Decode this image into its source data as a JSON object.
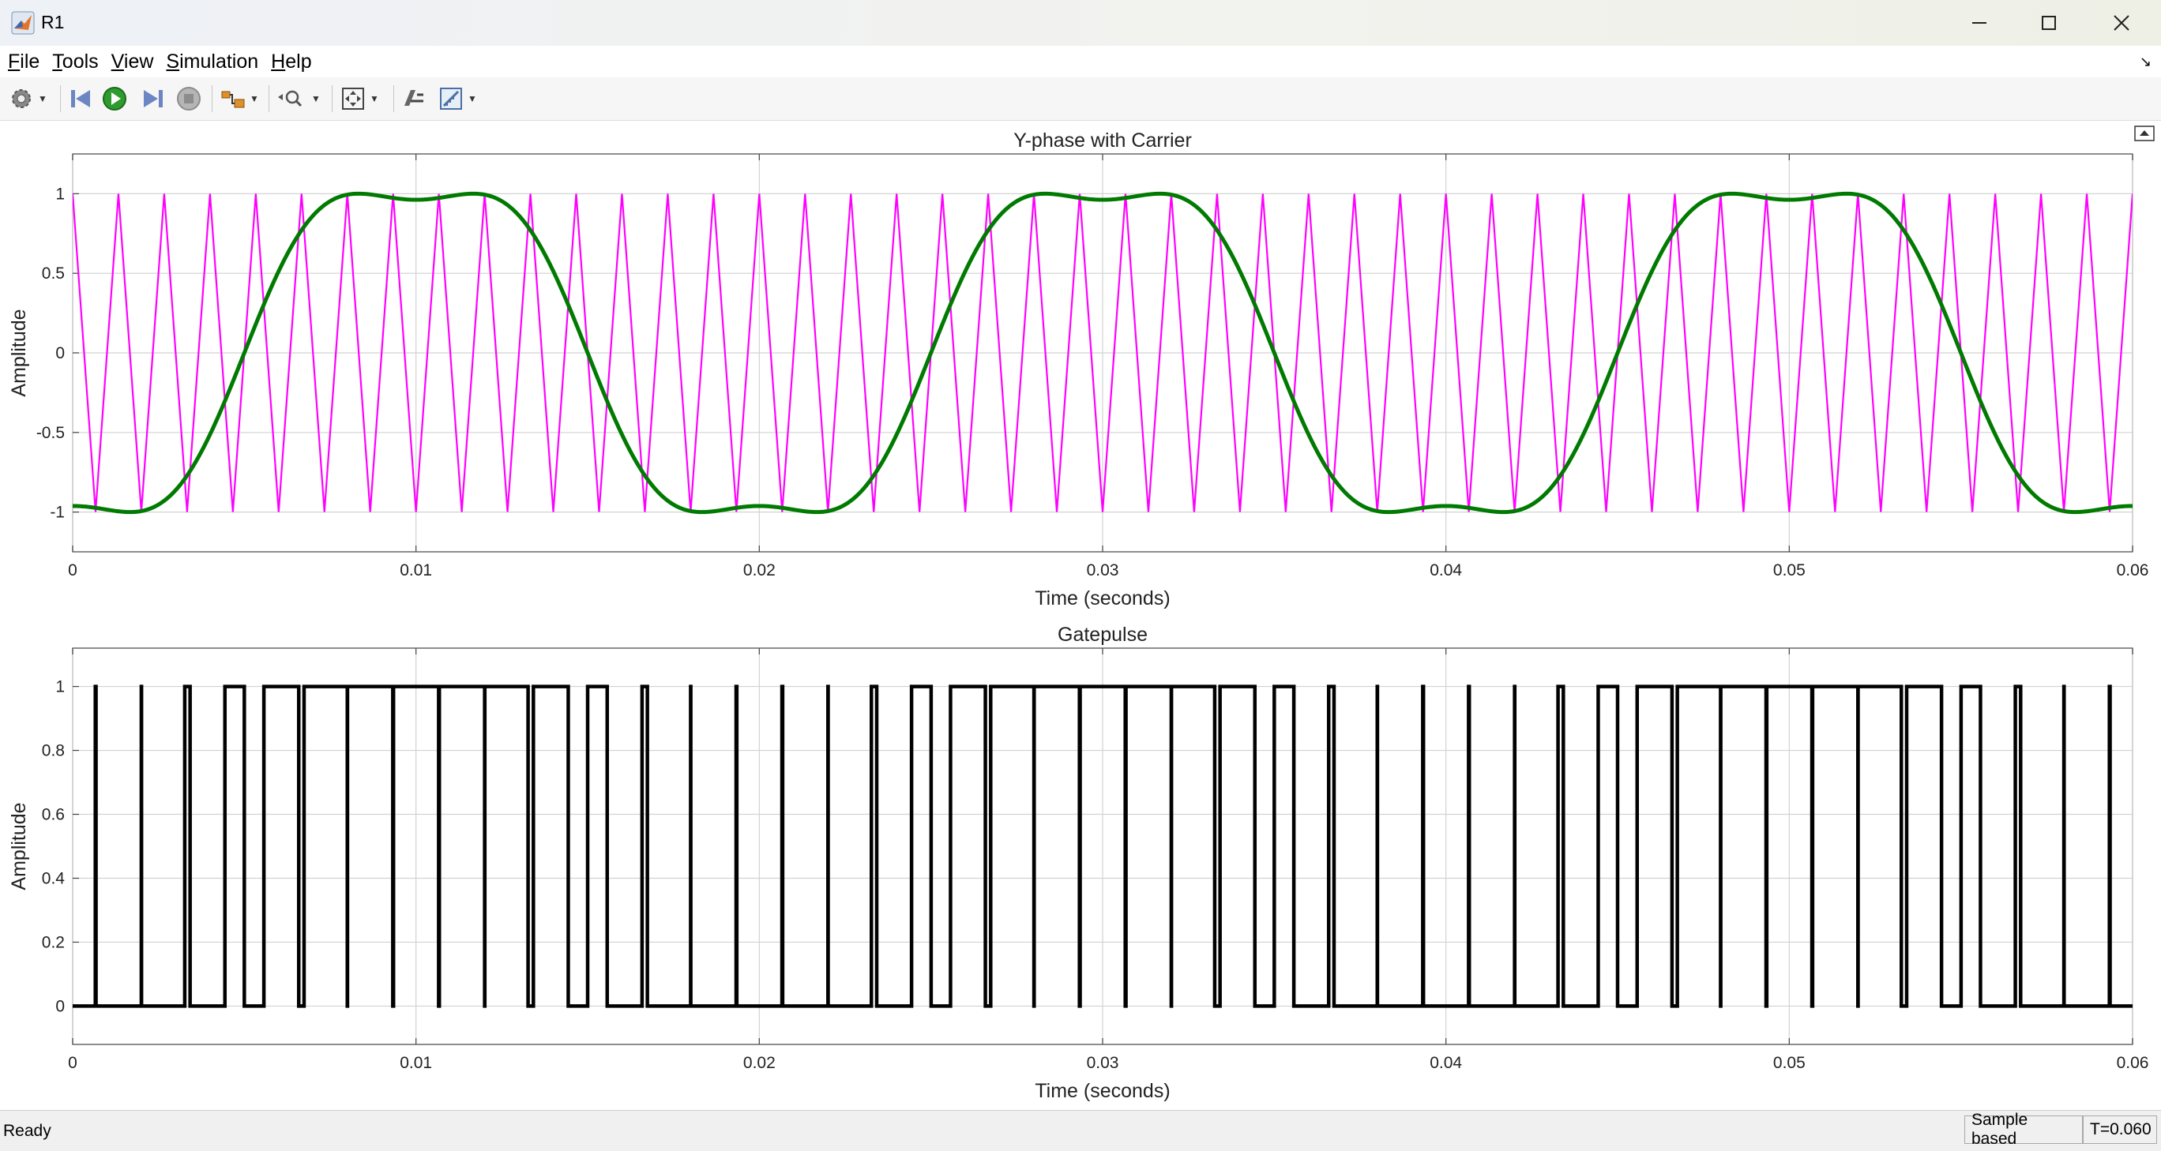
{
  "window": {
    "title": "R1",
    "icons": [
      "matlab-logo-icon",
      "minimize-icon",
      "maximize-icon",
      "close-icon"
    ]
  },
  "menu": [
    {
      "label": "File",
      "accel": "F"
    },
    {
      "label": "Tools",
      "accel": "T"
    },
    {
      "label": "View",
      "accel": "V"
    },
    {
      "label": "Simulation",
      "accel": "S"
    },
    {
      "label": "Help",
      "accel": "H"
    }
  ],
  "toolbar": {
    "icons": [
      "settings-icon",
      "step-back-icon",
      "run-icon",
      "step-forward-icon",
      "stop-icon",
      "highlight-block-icon",
      "zoom-icon",
      "fit-to-view-icon",
      "restore-layout-icon",
      "measurement-icon"
    ]
  },
  "colors": {
    "carrier": "#ff00ff",
    "reference": "#007a00",
    "gatepulse": "#000000",
    "grid": "#d2d2d2"
  },
  "plots": [
    {
      "title": "Y-phase with Carrier",
      "xlabel": "Time (seconds)",
      "ylabel": "Amplitude",
      "xlim": [
        0,
        0.06
      ],
      "ylim": [
        -1.25,
        1.25
      ],
      "xticks": [
        "0",
        "0.01",
        "0.02",
        "0.03",
        "0.04",
        "0.05",
        "0.06"
      ],
      "yticks": [
        "1",
        "0.5",
        "0",
        "-0.5",
        "-1"
      ]
    },
    {
      "title": "Gatepulse",
      "xlabel": "Time (seconds)",
      "ylabel": "Amplitude",
      "xlim": [
        0,
        0.06
      ],
      "ylim": [
        -0.12,
        1.12
      ],
      "xticks": [
        "0",
        "0.01",
        "0.02",
        "0.03",
        "0.04",
        "0.05",
        "0.06"
      ],
      "yticks": [
        "1",
        "0.8",
        "0.6",
        "0.4",
        "0.2",
        "0"
      ]
    }
  ],
  "chart_data": [
    {
      "type": "line",
      "title": "Y-phase with Carrier",
      "xlabel": "Time (seconds)",
      "ylabel": "Amplitude",
      "xlim": [
        0,
        0.06
      ],
      "ylim": [
        -1.25,
        1.25
      ],
      "grid": true,
      "series": [
        {
          "kind": "triangle-carrier",
          "color": "#ff00ff",
          "frequency_hz": 750,
          "amplitude": 1,
          "phase_start": 1
        },
        {
          "kind": "reference",
          "color": "#007a00",
          "frequency_hz": 50,
          "fundamental_amplitude": 1.155,
          "third_harmonic_amplitude": 0.193,
          "phase_deg": -90
        }
      ]
    },
    {
      "type": "line",
      "title": "Gatepulse",
      "xlabel": "Time (seconds)",
      "ylabel": "Amplitude",
      "xlim": [
        0,
        0.06
      ],
      "ylim": [
        -0.12,
        1.12
      ],
      "grid": true,
      "series": [
        {
          "kind": "gate-pulse",
          "color": "#000000",
          "rule": "1 when reference > carrier, else 0"
        }
      ]
    }
  ],
  "status": {
    "left": "Ready",
    "mode": "Sample based",
    "time": "T=0.060"
  }
}
